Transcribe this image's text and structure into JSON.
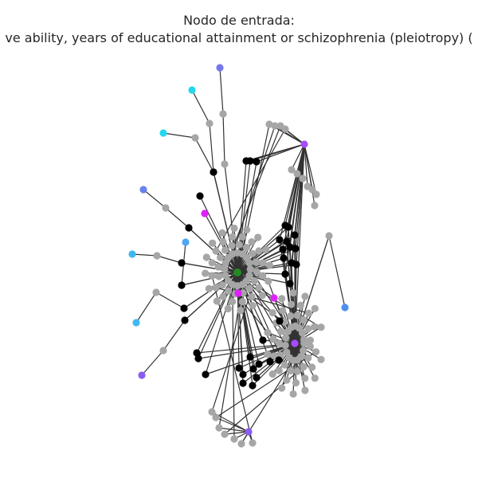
{
  "title": {
    "line1": "Nodo de entrada:",
    "line2": "ve ability, years of educational attainment or schizophrenia (pleiotropy) ("
  },
  "graph": {
    "colors": {
      "input": "#228b22",
      "intermediate": "#000000",
      "other": "#a6a6a6",
      "magenta": "#e021ff",
      "purple": "#a74bff",
      "violet": "#8a5cf0",
      "periwinkle": "#7479ea",
      "cyan": "#25d7ee",
      "sky": "#3db9ef",
      "azure": "#4fa6f2",
      "blue": "#4a90f0",
      "slate": "#6a82ee"
    }
  }
}
